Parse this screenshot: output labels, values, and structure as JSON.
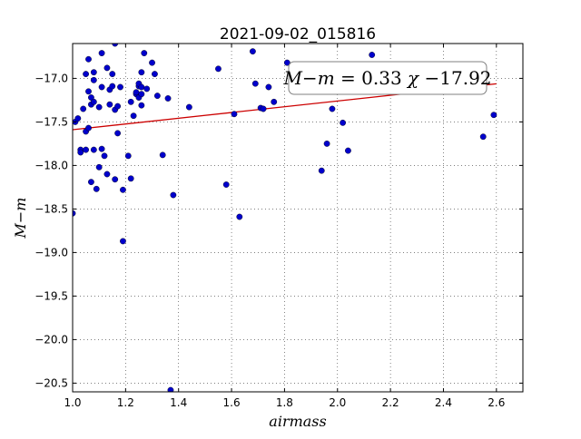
{
  "chart_data": {
    "type": "scatter",
    "title": "2021-09-02_015816",
    "xlabel": "airmass",
    "ylabel": "M−m",
    "xlim": [
      1.0,
      2.7
    ],
    "ylim": [
      -20.6,
      -16.6
    ],
    "x_ticks": [
      1.0,
      1.2,
      1.4,
      1.6,
      1.8,
      2.0,
      2.2,
      2.4,
      2.6
    ],
    "x_tick_labels": [
      "1.0",
      "1.2",
      "1.4",
      "1.6",
      "1.8",
      "2.0",
      "2.2",
      "2.4",
      "2.6"
    ],
    "y_ticks": [
      -20.5,
      -20.0,
      -19.5,
      -19.0,
      -18.5,
      -18.0,
      -17.5,
      -17.0
    ],
    "y_tick_labels": [
      "−20.5",
      "−20.0",
      "−19.5",
      "−19.0",
      "−18.5",
      "−18.0",
      "−17.5",
      "−17.0"
    ],
    "grid": true,
    "annotation": {
      "lhs": "M−m",
      "equals": "=",
      "slope": "0.33",
      "var": "χ",
      "intercept": "−17.92"
    },
    "fit_line": {
      "slope": 0.33,
      "intercept": -17.92,
      "x_range": [
        1.0,
        2.6
      ],
      "color": "#cc0000"
    },
    "point_color": "#0000cc",
    "points": [
      [
        1.0,
        -18.55
      ],
      [
        1.01,
        -17.5
      ],
      [
        1.02,
        -17.46
      ],
      [
        1.03,
        -17.82
      ],
      [
        1.03,
        -17.85
      ],
      [
        1.04,
        -17.35
      ],
      [
        1.05,
        -16.95
      ],
      [
        1.05,
        -17.61
      ],
      [
        1.05,
        -17.82
      ],
      [
        1.06,
        -16.78
      ],
      [
        1.06,
        -17.15
      ],
      [
        1.06,
        -17.57
      ],
      [
        1.07,
        -17.3
      ],
      [
        1.07,
        -17.22
      ],
      [
        1.07,
        -18.19
      ],
      [
        1.08,
        -16.93
      ],
      [
        1.08,
        -17.02
      ],
      [
        1.08,
        -17.27
      ],
      [
        1.08,
        -17.82
      ],
      [
        1.09,
        -18.27
      ],
      [
        1.1,
        -17.33
      ],
      [
        1.1,
        -18.02
      ],
      [
        1.11,
        -16.71
      ],
      [
        1.11,
        -17.1
      ],
      [
        1.11,
        -17.81
      ],
      [
        1.12,
        -17.89
      ],
      [
        1.13,
        -16.88
      ],
      [
        1.13,
        -18.1
      ],
      [
        1.14,
        -17.3
      ],
      [
        1.14,
        -17.13
      ],
      [
        1.15,
        -16.95
      ],
      [
        1.15,
        -17.09
      ],
      [
        1.16,
        -16.6
      ],
      [
        1.16,
        -17.36
      ],
      [
        1.16,
        -18.16
      ],
      [
        1.17,
        -17.63
      ],
      [
        1.17,
        -17.32
      ],
      [
        1.18,
        -17.1
      ],
      [
        1.19,
        -18.28
      ],
      [
        1.19,
        -18.87
      ],
      [
        1.21,
        -17.89
      ],
      [
        1.22,
        -17.27
      ],
      [
        1.22,
        -18.15
      ],
      [
        1.23,
        -17.43
      ],
      [
        1.24,
        -17.18
      ],
      [
        1.24,
        -17.16
      ],
      [
        1.25,
        -17.09
      ],
      [
        1.25,
        -17.06
      ],
      [
        1.25,
        -17.22
      ],
      [
        1.26,
        -16.93
      ],
      [
        1.26,
        -17.18
      ],
      [
        1.26,
        -17.31
      ],
      [
        1.26,
        -17.1
      ],
      [
        1.27,
        -16.71
      ],
      [
        1.28,
        -17.12
      ],
      [
        1.3,
        -16.82
      ],
      [
        1.31,
        -16.95
      ],
      [
        1.32,
        -17.2
      ],
      [
        1.34,
        -17.88
      ],
      [
        1.36,
        -17.23
      ],
      [
        1.37,
        -20.58
      ],
      [
        1.38,
        -18.34
      ],
      [
        1.44,
        -17.33
      ],
      [
        1.55,
        -16.89
      ],
      [
        1.58,
        -18.22
      ],
      [
        1.61,
        -17.41
      ],
      [
        1.63,
        -18.59
      ],
      [
        1.68,
        -16.69
      ],
      [
        1.69,
        -17.06
      ],
      [
        1.71,
        -17.34
      ],
      [
        1.72,
        -17.35
      ],
      [
        1.74,
        -17.1
      ],
      [
        1.76,
        -17.27
      ],
      [
        1.81,
        -16.82
      ],
      [
        1.94,
        -18.06
      ],
      [
        1.96,
        -17.75
      ],
      [
        1.98,
        -17.35
      ],
      [
        2.02,
        -17.51
      ],
      [
        2.04,
        -17.83
      ],
      [
        2.13,
        -16.73
      ],
      [
        2.55,
        -17.67
      ],
      [
        2.59,
        -17.42
      ]
    ]
  }
}
